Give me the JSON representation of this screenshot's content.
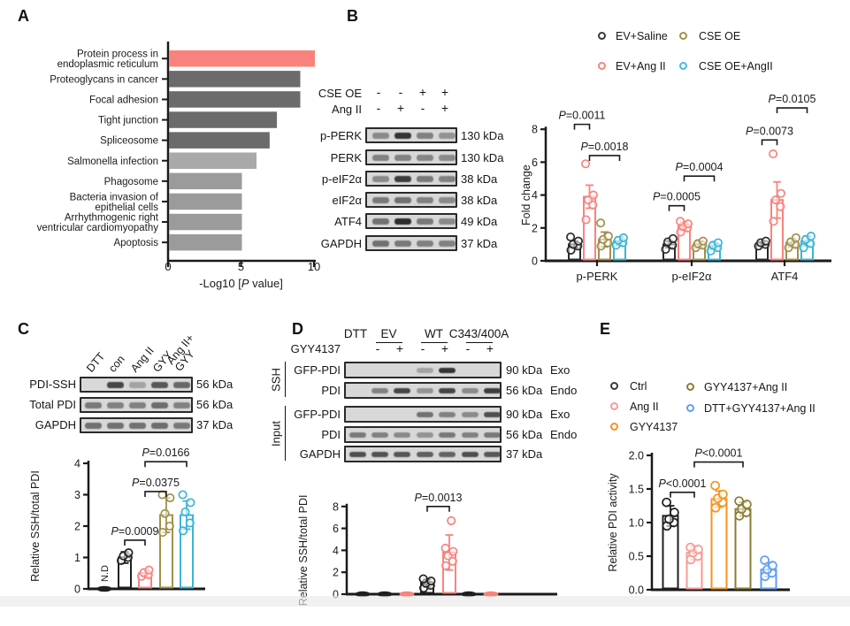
{
  "panels": {
    "A": {
      "label": "A"
    },
    "B": {
      "label": "B",
      "legend": [
        {
          "label": "EV+Saline",
          "color": "#3a3a3a"
        },
        {
          "label": "EV+Ang II",
          "color": "#f8837e"
        },
        {
          "label": "CSE OE",
          "color": "#a1904a"
        },
        {
          "label": "CSE OE+AngII",
          "color": "#45bce0"
        }
      ],
      "blot": {
        "conditions": [
          {
            "label": "CSE OE",
            "marks": [
              "-",
              "-",
              "+",
              "+"
            ]
          },
          {
            "label": "Ang II",
            "marks": [
              "-",
              "+",
              "-",
              "+"
            ]
          }
        ],
        "rows": [
          {
            "label": "p-PERK",
            "kda": "130 kDa",
            "bands": [
              0.45,
              0.95,
              0.5,
              0.4
            ]
          },
          {
            "label": "PERK",
            "kda": "130 kDa",
            "bands": [
              0.5,
              0.5,
              0.48,
              0.45
            ]
          },
          {
            "label": "p-eIF2α",
            "kda": "38 kDa",
            "bands": [
              0.45,
              0.9,
              0.55,
              0.5
            ]
          },
          {
            "label": "eIF2α",
            "kda": "38 kDa",
            "bands": [
              0.55,
              0.6,
              0.5,
              0.45
            ]
          },
          {
            "label": "ATF4",
            "kda": "49 kDa",
            "bands": [
              0.6,
              1.0,
              0.55,
              0.45
            ]
          },
          {
            "label": "GAPDH",
            "kda": "37 kDa",
            "bands": [
              0.6,
              0.55,
              0.5,
              0.5
            ]
          }
        ]
      }
    },
    "C": {
      "label": "C",
      "blot": {
        "lanes": [
          "DTT",
          "con",
          "Ang II",
          "GYY",
          "Ang II+\nGYY"
        ],
        "rows": [
          {
            "label": "PDI-SSH",
            "kda": "56 kDa",
            "bands": [
              0.0,
              0.85,
              0.3,
              0.75,
              0.65
            ]
          },
          {
            "label": "Total PDI",
            "kda": "56 kDa",
            "bands": [
              0.55,
              0.5,
              0.5,
              0.62,
              0.5
            ]
          },
          {
            "label": "GAPDH",
            "kda": "37 kDa",
            "bands": [
              0.6,
              0.6,
              0.6,
              0.62,
              0.55
            ]
          }
        ]
      }
    },
    "D": {
      "label": "D",
      "blot": {
        "header_groups": [
          {
            "label": "DTT",
            "underline": false,
            "lanes": [
              0
            ]
          },
          {
            "label": "EV",
            "underline": true,
            "lanes": [
              1,
              2
            ]
          },
          {
            "label": "WT",
            "underline": true,
            "lanes": [
              3,
              4
            ]
          },
          {
            "label": "C343/400A",
            "underline": true,
            "lanes": [
              5,
              6
            ]
          }
        ],
        "treatment": {
          "label": "GYY4137",
          "marks": [
            "",
            "-",
            "+",
            "-",
            "+",
            "-",
            "+"
          ]
        },
        "sections": [
          {
            "name": "SSH",
            "rows": [
              {
                "label": "GFP-PDI",
                "kda": "90 kDa",
                "tag": "Exo",
                "bands": [
                  0,
                  0,
                  0,
                  0.3,
                  0.95,
                  0,
                  0
                ]
              },
              {
                "label": "PDI",
                "kda": "56 kDa",
                "tag": "Endo",
                "bands": [
                  0,
                  0.5,
                  0.85,
                  0.4,
                  0.85,
                  0.45,
                  0.9
                ]
              }
            ]
          },
          {
            "name": "Input",
            "rows": [
              {
                "label": "GFP-PDI",
                "kda": "90 kDa",
                "tag": "Exo",
                "bands": [
                  0,
                  0,
                  0,
                  0.6,
                  0.5,
                  0.45,
                  0.8
                ]
              },
              {
                "label": "PDI",
                "kda": "56 kDa",
                "tag": "Endo",
                "bands": [
                  0.55,
                  0.5,
                  0.45,
                  0.4,
                  0.55,
                  0.5,
                  0.55
                ]
              },
              {
                "label": "GAPDH",
                "kda": "37 kDa",
                "tag": "",
                "bands": [
                  0.8,
                  0.78,
                  0.75,
                  0.7,
                  0.68,
                  0.8,
                  0.75
                ]
              }
            ]
          }
        ]
      }
    },
    "E": {
      "label": "E",
      "legend": [
        {
          "label": "Ctrl",
          "color": "#3a3a3a"
        },
        {
          "label": "Ang II",
          "color": "#f99a95"
        },
        {
          "label": "GYY4137",
          "color": "#f7941d"
        },
        {
          "label": "GYY4137+Ang II",
          "color": "#8c7c33"
        },
        {
          "label": "DTT+GYY4137+Ang II",
          "color": "#5f9ef2"
        }
      ]
    }
  },
  "chart_data": [
    {
      "panel": "A",
      "type": "bar",
      "orientation": "horizontal",
      "categories": [
        "Protein process in\nendoplasmic reticulum",
        "Proteoglycans in cancer",
        "Focal adhesion",
        "Tight junction",
        "Spliceosome",
        "Salmonella infection",
        "Phagosome",
        "Bacteria invasion of\nepithelial cells",
        "Arrhythmogenic right\nventricular cardiomyopathy",
        "Apoptosis"
      ],
      "values": [
        10,
        9,
        9,
        7.4,
        6.9,
        6,
        5,
        5,
        5,
        5
      ],
      "colors": [
        "#f9827d",
        "#6b6b6b",
        "#6b6b6b",
        "#6b6b6b",
        "#6b6b6b",
        "#a9a9a9",
        "#9b9b9b",
        "#9b9b9b",
        "#9b9b9b",
        "#9b9b9b"
      ],
      "xlabel": "-Log10 [P value]",
      "xticks": [
        0,
        5,
        10
      ],
      "xlim": [
        0,
        10
      ]
    },
    {
      "panel": "B",
      "type": "bar",
      "categories": [
        "p-PERK",
        "p-eIF2α",
        "ATF4"
      ],
      "series": [
        {
          "name": "EV+Saline",
          "color": "#2a2a2a",
          "values": [
            1.0,
            1.0,
            1.05
          ],
          "errors": [
            0.2,
            0.2,
            0.1
          ],
          "dots": [
            [
              0.65,
              0.9,
              1.0,
              1.2,
              1.45
            ],
            [
              0.7,
              0.95,
              1.15,
              1.35
            ],
            [
              0.9,
              1.0,
              1.1,
              1.2
            ]
          ]
        },
        {
          "name": "EV+Ang II",
          "color": "#f8837e",
          "values": [
            3.9,
            2.1,
            3.7
          ],
          "errors": [
            0.7,
            0.25,
            1.1
          ],
          "dots": [
            [
              2.5,
              3.4,
              3.7,
              4.0,
              5.9
            ],
            [
              1.75,
              2.0,
              2.1,
              2.25,
              2.4
            ],
            [
              2.4,
              3.3,
              3.7,
              4.1,
              6.5
            ]
          ]
        },
        {
          "name": "CSE OE",
          "color": "#a1904a",
          "values": [
            1.3,
            1.0,
            1.1
          ],
          "errors": [
            0.45,
            0.2,
            0.25
          ],
          "dots": [
            [
              0.9,
              1.1,
              1.3,
              1.5,
              2.3
            ],
            [
              0.8,
              0.95,
              1.05,
              1.2
            ],
            [
              0.8,
              1.0,
              1.15,
              1.4
            ]
          ]
        },
        {
          "name": "CSE OE+AngII",
          "color": "#3cb4d6",
          "values": [
            1.2,
            0.9,
            1.2
          ],
          "errors": [
            0.25,
            0.2,
            0.3
          ],
          "dots": [
            [
              0.95,
              1.1,
              1.25,
              1.4
            ],
            [
              0.6,
              0.8,
              0.95,
              1.1
            ],
            [
              0.8,
              1.05,
              1.3,
              1.5
            ]
          ]
        }
      ],
      "ylabel": "Fold change",
      "yticks": [
        0,
        2,
        4,
        6,
        8
      ],
      "ylim": [
        0,
        8
      ],
      "legend_position": "top-right",
      "significance": [
        {
          "cat": 0,
          "s1": 0,
          "s2": 1,
          "y": 8.3,
          "label": "P=0.0011"
        },
        {
          "cat": 0,
          "s1": 1,
          "s2": 3,
          "y": 6.4,
          "label": "P=0.0018"
        },
        {
          "cat": 1,
          "s1": 0,
          "s2": 1,
          "y": 3.35,
          "label": "P=0.0005"
        },
        {
          "cat": 1,
          "s1": 1,
          "s2": 3,
          "y": 5.15,
          "label": "P=0.0004"
        },
        {
          "cat": 2,
          "s1": 0,
          "s2": 1,
          "y": 7.35,
          "label": "P=0.0073"
        },
        {
          "cat": 2,
          "s1": 1,
          "s2": 3,
          "y": 9.3,
          "label": "P=0.0105"
        }
      ]
    },
    {
      "panel": "C",
      "type": "bar",
      "categories": [
        "DTT",
        "con",
        "Ang II",
        "GYY",
        "Ang II+GYY"
      ],
      "values": [
        0,
        1.0,
        0.5,
        2.35,
        2.35
      ],
      "colors": [
        "#1f1f1f",
        "#1f1f1f",
        "#f8837e",
        "#a1904a",
        "#3cb4d6"
      ],
      "errors": [
        0,
        0.18,
        0.12,
        0.55,
        0.45
      ],
      "dots": [
        [],
        [
          0.9,
          1.0,
          1.05,
          1.15
        ],
        [
          0.4,
          0.45,
          0.52,
          0.6
        ],
        [
          1.8,
          2.0,
          2.4,
          2.9,
          3.0
        ],
        [
          1.85,
          2.1,
          2.45,
          2.75,
          3.0
        ]
      ],
      "flat_zero": [
        true,
        false,
        false,
        false,
        false
      ],
      "nd_label": "N.D",
      "nd_index": 0,
      "ylabel": "Relative SSH/total PDI",
      "yticks": [
        0,
        1,
        2,
        3,
        4
      ],
      "ylim": [
        0,
        4
      ],
      "significance": [
        {
          "b1": 1,
          "b2": 2,
          "y": 1.55,
          "label": "P=0.0009"
        },
        {
          "b1": 2,
          "b2": 3,
          "y": 3.1,
          "label": "P=0.0375"
        },
        {
          "b1": 2,
          "b2": 4,
          "y": 4.05,
          "label": "P=0.0166"
        }
      ]
    },
    {
      "panel": "D",
      "type": "bar",
      "categories": [
        "DTT",
        "EV −GYY4137",
        "EV +GYY4137",
        "WT −GYY4137",
        "WT +GYY4137",
        "C343/400A −GYY4137",
        "C343/400A +GYY4137"
      ],
      "values": [
        0,
        0,
        0,
        1.0,
        3.8,
        0,
        0
      ],
      "colors": [
        "#1f1f1f",
        "#1f1f1f",
        "#f8837e",
        "#1f1f1f",
        "#f8837e",
        "#1f1f1f",
        "#f8837e"
      ],
      "errors": [
        0,
        0,
        0,
        0.35,
        1.6,
        0,
        0
      ],
      "dots": [
        [],
        [],
        [],
        [
          0.55,
          0.8,
          1.0,
          1.2,
          1.4
        ],
        [
          2.6,
          3.0,
          3.5,
          3.9,
          4.2,
          6.7
        ],
        [],
        []
      ],
      "flat_zero": [
        true,
        true,
        true,
        false,
        false,
        true,
        true
      ],
      "ylabel": "Relative SSH/total PDI",
      "yticks": [
        0,
        2,
        4,
        6,
        8
      ],
      "ylim": [
        0,
        8
      ],
      "significance": [
        {
          "b1": 3,
          "b2": 4,
          "y": 8.0,
          "label": "P=0.0013"
        }
      ]
    },
    {
      "panel": "E",
      "type": "bar",
      "categories": [
        "Ctrl",
        "Ang II",
        "GYY4137",
        "GYY4137+Ang II",
        "DTT+GYY4137+Ang II"
      ],
      "values": [
        1.1,
        0.55,
        1.35,
        1.2,
        0.3
      ],
      "colors": [
        "#1f1f1f",
        "#f99a95",
        "#f7941d",
        "#8c7c33",
        "#5f9ef2"
      ],
      "errors": [
        0.15,
        0.1,
        0.12,
        0.1,
        0.1
      ],
      "dots": [
        [
          0.95,
          1.0,
          1.05,
          1.15,
          1.3
        ],
        [
          0.45,
          0.5,
          0.55,
          0.6,
          0.63
        ],
        [
          1.22,
          1.3,
          1.36,
          1.42,
          1.55
        ],
        [
          1.1,
          1.15,
          1.2,
          1.27,
          1.32
        ],
        [
          0.2,
          0.25,
          0.3,
          0.36,
          0.44
        ]
      ],
      "ylabel": "Relative PDI activity",
      "yticks": [
        "0.0",
        "0.5",
        "1.0",
        "1.5",
        "2.0"
      ],
      "ylim": [
        0,
        2
      ],
      "significance": [
        {
          "b1": 0,
          "b2": 1,
          "y": 1.45,
          "label": "P<0.0001"
        },
        {
          "b1": 1,
          "b2": 3,
          "y": 1.9,
          "label": "P<0.0001"
        }
      ]
    }
  ]
}
